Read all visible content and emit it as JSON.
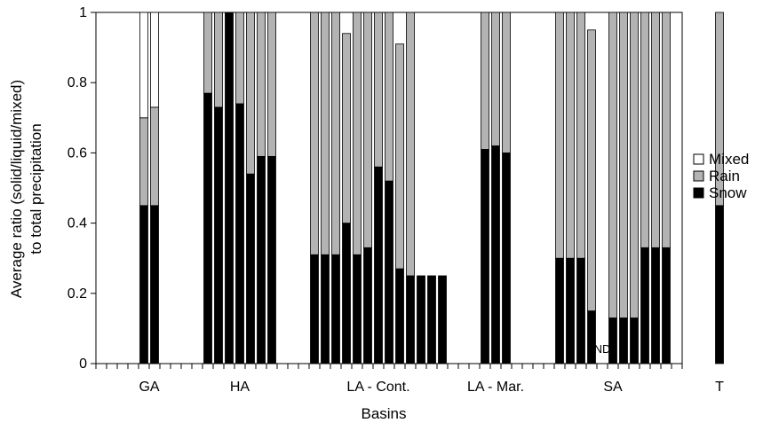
{
  "chart_data": {
    "type": "bar",
    "stacked": true,
    "xlabel": "Basins",
    "ylabel_line1": "Average ratio (solid/liquid/mixed)",
    "ylabel_line2": "to total precipitation",
    "ylim": [
      0,
      1
    ],
    "yticks": [
      "0",
      "0.2",
      "0.4",
      "0.6",
      "0.8",
      "1"
    ],
    "ytick_values": [
      0,
      0.2,
      0.4,
      0.6,
      0.8,
      1
    ],
    "groups": [
      "GA",
      "HA",
      "LA - Cont.",
      "LA - Mar.",
      "SA",
      "T"
    ],
    "legend": {
      "placement": "right",
      "items": [
        "Mixed",
        "Rain",
        "Snow"
      ]
    },
    "colors": {
      "Snow": "#000000",
      "Rain": "#b3b3b3",
      "Mixed": "#ffffff",
      "edge": "#000000"
    },
    "annotations": [
      {
        "text": "ND",
        "group": "SA",
        "bar_index": 4
      }
    ],
    "bars": [
      {
        "group": "GA",
        "snow": 0.45,
        "rain": 0.25,
        "mixed": 0.3
      },
      {
        "group": "GA",
        "snow": 0.45,
        "rain": 0.28,
        "mixed": 0.27
      },
      {
        "group": "HA",
        "snow": 0.77,
        "rain": 0.23,
        "mixed": 0
      },
      {
        "group": "HA",
        "snow": 0.73,
        "rain": 0.27,
        "mixed": 0
      },
      {
        "group": "HA",
        "snow": 1.0,
        "rain": 0.0,
        "mixed": 0
      },
      {
        "group": "HA",
        "snow": 0.74,
        "rain": 0.26,
        "mixed": 0
      },
      {
        "group": "HA",
        "snow": 0.54,
        "rain": 0.46,
        "mixed": 0
      },
      {
        "group": "HA",
        "snow": 0.59,
        "rain": 0.41,
        "mixed": 0
      },
      {
        "group": "HA",
        "snow": 0.59,
        "rain": 0.41,
        "mixed": 0
      },
      {
        "group": "LA - Cont.",
        "snow": 0.31,
        "rain": 0.69,
        "mixed": 0
      },
      {
        "group": "LA - Cont.",
        "snow": 0.31,
        "rain": 0.69,
        "mixed": 0
      },
      {
        "group": "LA - Cont.",
        "snow": 0.31,
        "rain": 0.69,
        "mixed": 0
      },
      {
        "group": "LA - Cont.",
        "snow": 0.4,
        "rain": 0.54,
        "mixed": 0
      },
      {
        "group": "LA - Cont.",
        "snow": 0.31,
        "rain": 0.69,
        "mixed": 0
      },
      {
        "group": "LA - Cont.",
        "snow": 0.33,
        "rain": 0.67,
        "mixed": 0
      },
      {
        "group": "LA - Cont.",
        "snow": 0.56,
        "rain": 0.44,
        "mixed": 0
      },
      {
        "group": "LA - Cont.",
        "snow": 0.52,
        "rain": 0.48,
        "mixed": 0
      },
      {
        "group": "LA - Cont.",
        "snow": 0.27,
        "rain": 0.64,
        "mixed": 0
      },
      {
        "group": "LA - Cont.",
        "snow": 0.25,
        "rain": 0.75,
        "mixed": 0
      },
      {
        "group": "LA - Cont.",
        "snow": 0.25,
        "rain": 0.0,
        "mixed": 0
      },
      {
        "group": "LA - Cont.",
        "snow": 0.25,
        "rain": 0.0,
        "mixed": 0
      },
      {
        "group": "LA - Cont.",
        "snow": 0.25,
        "rain": 0.0,
        "mixed": 0
      },
      {
        "group": "LA - Mar.",
        "snow": 0.61,
        "rain": 0.39,
        "mixed": 0
      },
      {
        "group": "LA - Mar.",
        "snow": 0.62,
        "rain": 0.38,
        "mixed": 0
      },
      {
        "group": "LA - Mar.",
        "snow": 0.6,
        "rain": 0.4,
        "mixed": 0
      },
      {
        "group": "SA",
        "snow": 0.3,
        "rain": 0.7,
        "mixed": 0
      },
      {
        "group": "SA",
        "snow": 0.3,
        "rain": 0.7,
        "mixed": 0
      },
      {
        "group": "SA",
        "snow": 0.3,
        "rain": 0.7,
        "mixed": 0
      },
      {
        "group": "SA",
        "snow": 0.15,
        "rain": 0.8,
        "mixed": 0
      },
      {
        "group": "SA",
        "snow": 0.0,
        "rain": 0.0,
        "mixed": 0
      },
      {
        "group": "SA",
        "snow": 0.13,
        "rain": 0.87,
        "mixed": 0
      },
      {
        "group": "SA",
        "snow": 0.13,
        "rain": 0.87,
        "mixed": 0
      },
      {
        "group": "SA",
        "snow": 0.13,
        "rain": 0.87,
        "mixed": 0
      },
      {
        "group": "SA",
        "snow": 0.33,
        "rain": 0.67,
        "mixed": 0
      },
      {
        "group": "SA",
        "snow": 0.33,
        "rain": 0.67,
        "mixed": 0
      },
      {
        "group": "SA",
        "snow": 0.33,
        "rain": 0.67,
        "mixed": 0
      },
      {
        "group": "T",
        "snow": 0.45,
        "rain": 0.55,
        "mixed": 0
      }
    ]
  }
}
